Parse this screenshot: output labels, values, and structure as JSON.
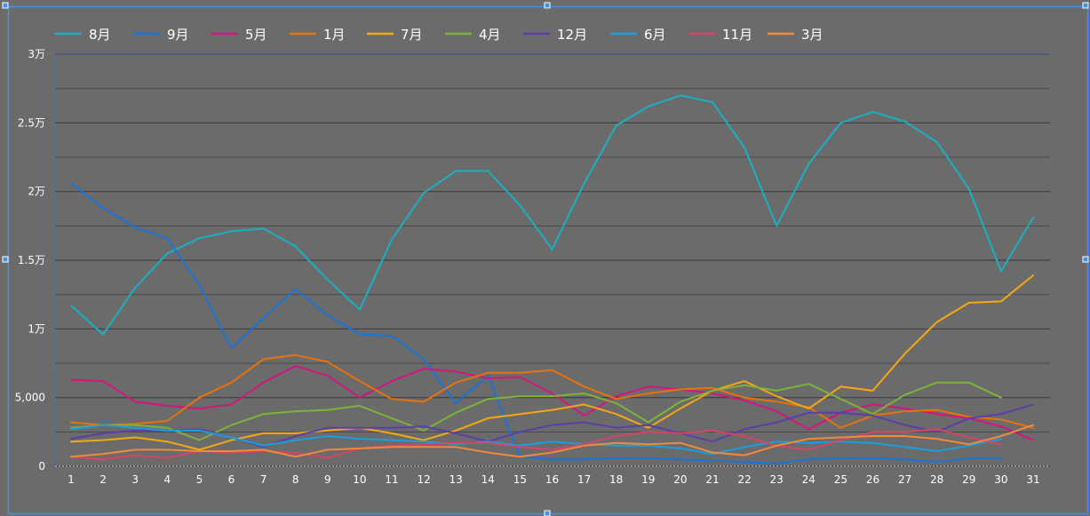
{
  "chart_data": {
    "type": "line",
    "title": "",
    "xlabel": "",
    "ylabel": "",
    "categories": [
      "1",
      "2",
      "3",
      "4",
      "5",
      "6",
      "7",
      "8",
      "9",
      "10",
      "11",
      "12",
      "13",
      "14",
      "15",
      "16",
      "17",
      "18",
      "19",
      "20",
      "21",
      "22",
      "23",
      "24",
      "25",
      "26",
      "27",
      "28",
      "29",
      "30",
      "31"
    ],
    "ylim": [
      0,
      30000
    ],
    "yticks": [
      {
        "value": 0,
        "label": "0"
      },
      {
        "value": 5000,
        "label": "5,000"
      },
      {
        "value": 10000,
        "label": "1万"
      },
      {
        "value": 15000,
        "label": "1.5万"
      },
      {
        "value": 20000,
        "label": "2万"
      },
      {
        "value": 25000,
        "label": "2.5万"
      },
      {
        "value": 30000,
        "label": "3万"
      }
    ],
    "grid": true,
    "legend_position": "top",
    "series": [
      {
        "name": "8月",
        "color": "#1ab0c4",
        "values": [
          11700,
          9600,
          13000,
          15500,
          16600,
          17100,
          17300,
          16000,
          13600,
          11400,
          16500,
          19900,
          21500,
          21500,
          19000,
          15800,
          20600,
          24800,
          26200,
          27000,
          26500,
          23200,
          17500,
          22000,
          25000,
          25800,
          25100,
          23600,
          20200,
          14200,
          18100
        ]
      },
      {
        "name": "9月",
        "color": "#1a73d8",
        "values": [
          20600,
          18800,
          17400,
          16600,
          13200,
          8600,
          10800,
          12900,
          11000,
          9600,
          9500,
          7800,
          4600,
          6600,
          700,
          500,
          500,
          600,
          600,
          500,
          400,
          300,
          200,
          500,
          600,
          600,
          500,
          300,
          600,
          600,
          null
        ]
      },
      {
        "name": "5月",
        "color": "#d4157e",
        "values": [
          6300,
          6200,
          4700,
          4400,
          4200,
          4500,
          6100,
          7300,
          6600,
          5000,
          6200,
          7100,
          6900,
          6400,
          6500,
          5300,
          3700,
          5100,
          5800,
          5600,
          5300,
          4800,
          4000,
          2700,
          3900,
          4500,
          4200,
          3800,
          3500,
          2900,
          1900
        ]
      },
      {
        "name": "1月",
        "color": "#e8720c",
        "values": [
          3200,
          3000,
          3100,
          3300,
          5000,
          6100,
          7800,
          8100,
          7600,
          6200,
          4900,
          4700,
          6100,
          6800,
          6800,
          7000,
          5800,
          4900,
          5300,
          5600,
          5700,
          5000,
          4700,
          4300,
          2800,
          3700,
          4000,
          4100,
          3600,
          3400,
          2800
        ]
      },
      {
        "name": "7月",
        "color": "#f5a812",
        "values": [
          1800,
          1900,
          2100,
          1800,
          1200,
          1900,
          2400,
          2400,
          2600,
          2800,
          2400,
          1900,
          2600,
          3500,
          3800,
          4100,
          4500,
          3800,
          2800,
          4200,
          5500,
          6200,
          5100,
          4200,
          5800,
          5500,
          8200,
          10500,
          11900,
          12000,
          13900
        ]
      },
      {
        "name": "4月",
        "color": "#7fb23a",
        "values": [
          2800,
          3000,
          3000,
          2800,
          1900,
          3000,
          3800,
          4000,
          4100,
          4400,
          3500,
          2600,
          3900,
          4900,
          5100,
          5100,
          5300,
          4600,
          3200,
          4700,
          5500,
          5900,
          5500,
          6000,
          4900,
          3800,
          5200,
          6100,
          6100,
          5000,
          null
        ]
      },
      {
        "name": "12月",
        "color": "#5b3ea6",
        "values": [
          2000,
          2400,
          2600,
          2600,
          2700,
          2100,
          1400,
          2200,
          2800,
          2800,
          2800,
          2900,
          2400,
          1800,
          2500,
          3000,
          3200,
          2800,
          3000,
          2400,
          1800,
          2700,
          3200,
          3900,
          3900,
          3700,
          3000,
          2500,
          3500,
          3800,
          4500
        ]
      },
      {
        "name": "6月",
        "color": "#1a9fe0",
        "values": [
          2700,
          3000,
          2800,
          2600,
          2600,
          2100,
          1500,
          1900,
          2200,
          2000,
          1900,
          1800,
          1600,
          1800,
          1500,
          1800,
          1600,
          1500,
          1500,
          1300,
          900,
          1400,
          1800,
          1700,
          1800,
          1700,
          1400,
          1100,
          1500,
          2000,
          null
        ]
      },
      {
        "name": "11月",
        "color": "#d64466",
        "values": [
          700,
          500,
          800,
          600,
          1100,
          1000,
          1100,
          1000,
          600,
          1300,
          1500,
          1600,
          1700,
          1700,
          1400,
          1200,
          1600,
          2200,
          2500,
          2400,
          2600,
          2200,
          1500,
          1200,
          1900,
          2500,
          2500,
          2700,
          2100,
          1600,
          null
        ]
      },
      {
        "name": "3月",
        "color": "#f08a3c",
        "values": [
          700,
          900,
          1200,
          1200,
          1100,
          1100,
          1200,
          700,
          1200,
          1300,
          1400,
          1400,
          1400,
          1000,
          700,
          1000,
          1500,
          1700,
          1600,
          1700,
          1000,
          800,
          1500,
          2000,
          2100,
          2200,
          2200,
          2000,
          1600,
          2200,
          3000
        ]
      }
    ]
  }
}
